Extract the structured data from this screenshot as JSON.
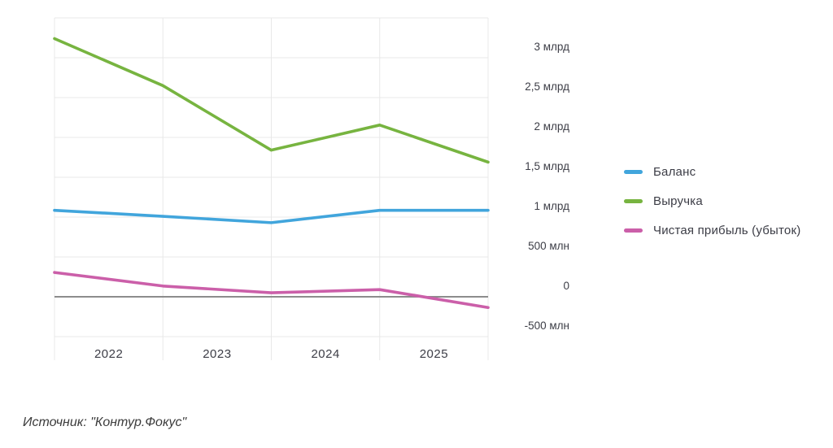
{
  "source_text": "Источник: \"Контур.Фокус\"",
  "colors": {
    "background": "#ffffff",
    "grid": "#e8e8e8",
    "zero_line": "#8c8c8c",
    "tick_text": "#3c3d46",
    "balance_line": "#41a5dc",
    "revenue_line": "#77b440",
    "profit_line": "#cb5fa9"
  },
  "chart_data": {
    "type": "line",
    "title": "",
    "xlabel": "",
    "ylabel": "",
    "grid": true,
    "legend_position": "right",
    "zero_line": true,
    "ylim_mln": [
      -500,
      3500
    ],
    "y_grid_step_mln": 500,
    "x_tick_labels": [
      "2022",
      "2023",
      "2024",
      "2025"
    ],
    "x_note": "5 data points sit on vertical gridlines (year-interval boundaries); year labels are centered between gridlines",
    "y_ticks": [
      {
        "value_mln": 3000,
        "label": "3 млрд"
      },
      {
        "value_mln": 2500,
        "label": "2,5 млрд"
      },
      {
        "value_mln": 2000,
        "label": "2 млрд"
      },
      {
        "value_mln": 1500,
        "label": "1,5 млрд"
      },
      {
        "value_mln": 1000,
        "label": "1 млрд"
      },
      {
        "value_mln": 500,
        "label": "500 млн"
      },
      {
        "value_mln": 0,
        "label": "0"
      },
      {
        "value_mln": -500,
        "label": "-500 млн"
      }
    ],
    "series": [
      {
        "name": "Баланс",
        "color": "#41a5dc",
        "values_mln": [
          1085,
          1010,
          930,
          1085,
          1085
        ]
      },
      {
        "name": "Выручка",
        "color": "#77b440",
        "values_mln": [
          3240,
          2650,
          1840,
          2155,
          1690
        ]
      },
      {
        "name": "Чистая прибыль (убыток)",
        "color": "#cb5fa9",
        "values_mln": [
          305,
          135,
          50,
          90,
          -135
        ]
      }
    ]
  }
}
